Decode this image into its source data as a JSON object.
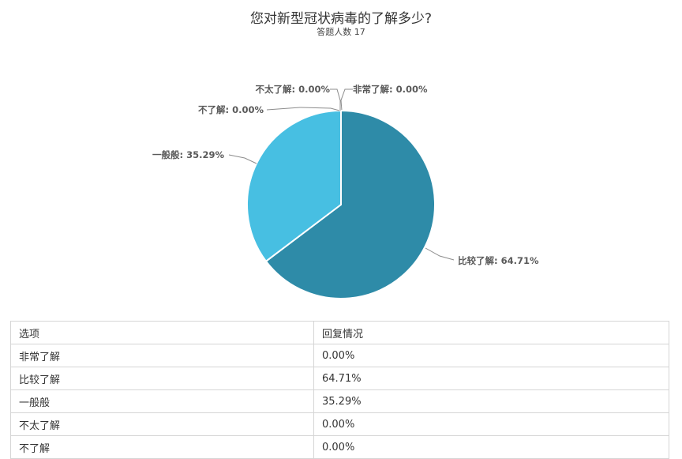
{
  "chart_data": {
    "type": "pie",
    "title": "您对新型冠状病毒的了解多少?",
    "subtitle": "答题人数 17",
    "slices": [
      {
        "name": "非常了解",
        "value": 0.0,
        "label": "非常了解: 0.00%",
        "color": "#1f77b4"
      },
      {
        "name": "比较了解",
        "value": 64.71,
        "label": "比较了解: 64.71%",
        "color": "#2e8ba8"
      },
      {
        "name": "一般般",
        "value": 35.29,
        "label": "一般般: 35.29%",
        "color": "#47bfe2"
      },
      {
        "name": "不太了解",
        "value": 0.0,
        "label": "不太了解: 0.00%",
        "color": "#a5c2d4"
      },
      {
        "name": "不了解",
        "value": 0.0,
        "label": "不了解: 0.00%",
        "color": "#4a7e95"
      }
    ],
    "grid": false,
    "legend": "none"
  },
  "table": {
    "headers": [
      "选项",
      "回复情况"
    ],
    "rows": [
      [
        "非常了解",
        "0.00%"
      ],
      [
        "比较了解",
        "64.71%"
      ],
      [
        "一般般",
        "35.29%"
      ],
      [
        "不太了解",
        "0.00%"
      ],
      [
        "不了解",
        "0.00%"
      ]
    ]
  }
}
